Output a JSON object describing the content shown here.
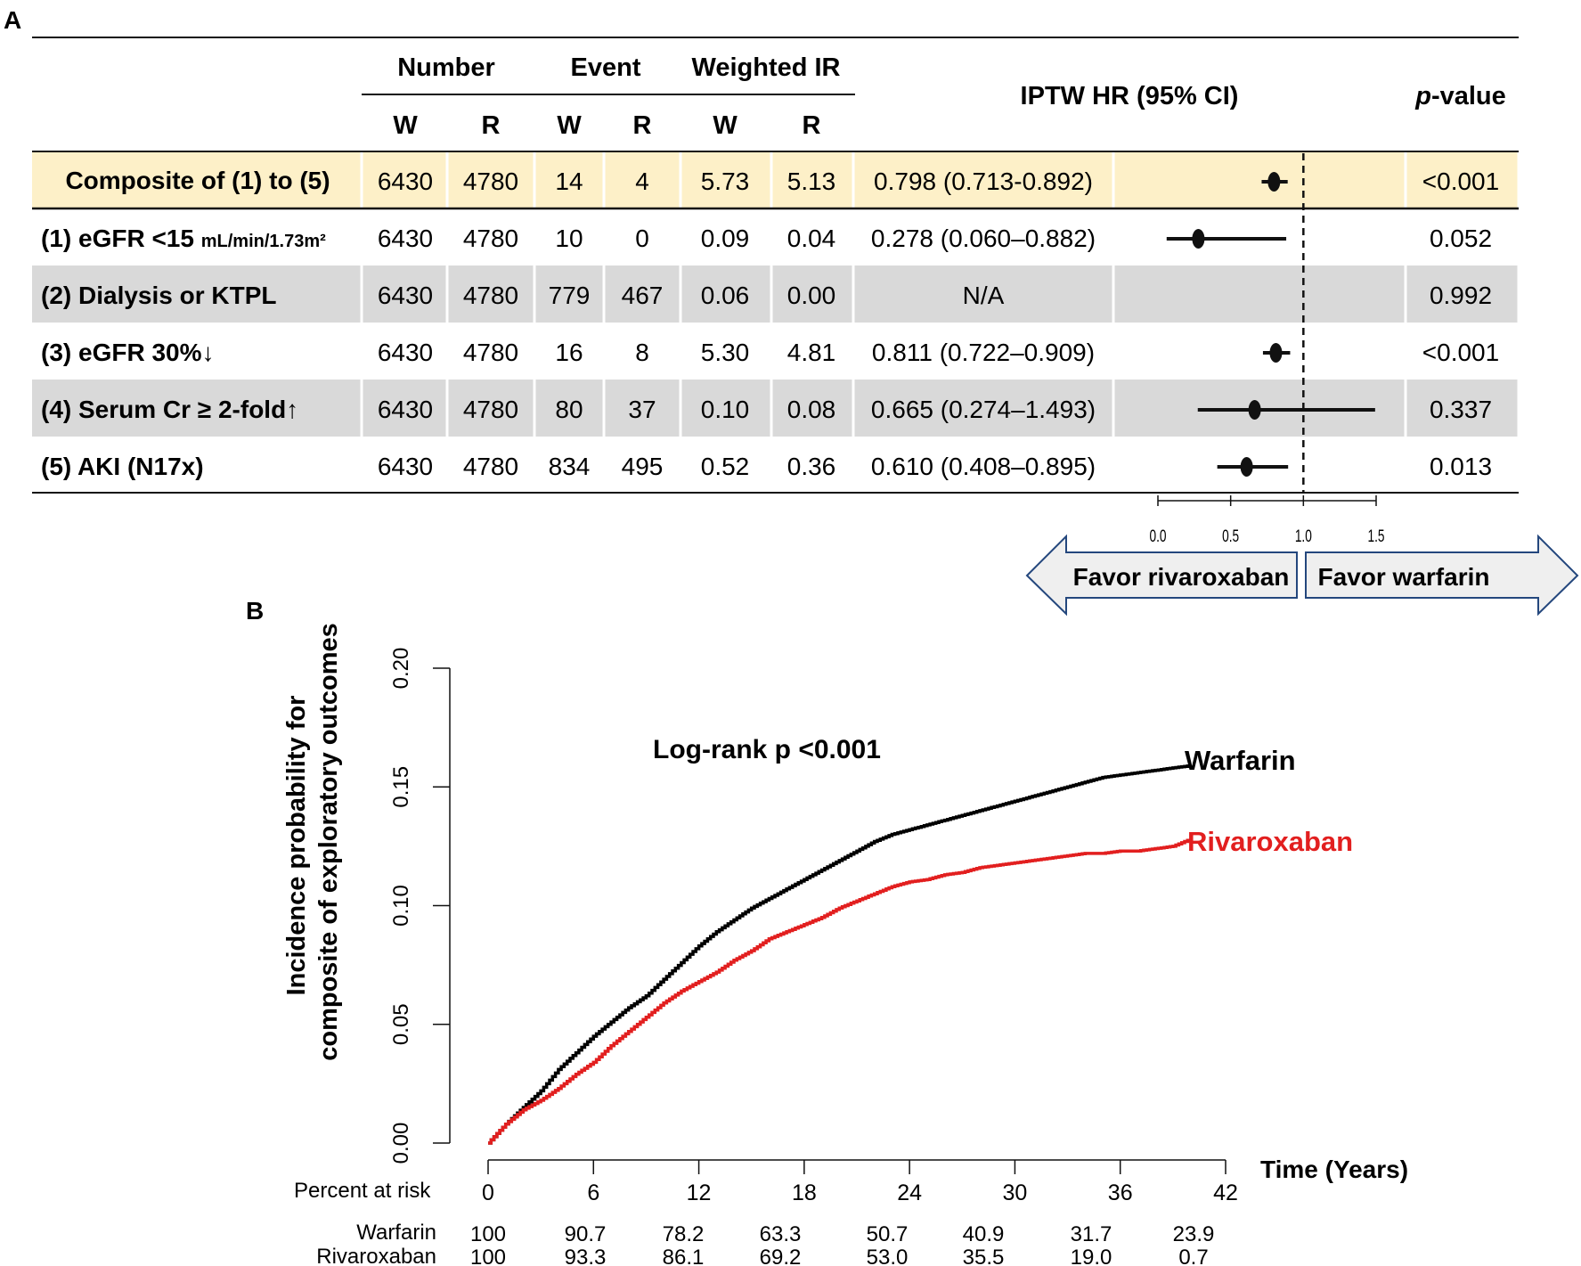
{
  "panelA": {
    "label": "A",
    "header": {
      "number": "Number",
      "event": "Event",
      "weighted_ir": "Weighted IR",
      "hr": "IPTW HR (95% CI)",
      "pvalue_italic": "p",
      "pvalue_rest": "-value",
      "sub": [
        "W",
        "R",
        "W",
        "R",
        "W",
        "R"
      ]
    },
    "rows": [
      {
        "label": "Composite of (1) to (5)",
        "label_suffix": "",
        "nW": "6430",
        "nR": "4780",
        "eW": "14",
        "eR": "4",
        "irW": "5.73",
        "irR": "5.13",
        "hr_text": "0.798 (0.713-0.892)",
        "p": "<0.001",
        "hr": 0.798,
        "lo": 0.713,
        "hi": 0.892,
        "highlight": true
      },
      {
        "label": "(1) eGFR <15 ",
        "label_suffix": "mL/min/1.73m²",
        "nW": "6430",
        "nR": "4780",
        "eW": "10",
        "eR": "0",
        "irW": "0.09",
        "irR": "0.04",
        "hr_text": "0.278 (0.060–0.882)",
        "p": "0.052",
        "hr": 0.278,
        "lo": 0.06,
        "hi": 0.882,
        "highlight": false
      },
      {
        "label": "(2) Dialysis or KTPL",
        "label_suffix": "",
        "nW": "6430",
        "nR": "4780",
        "eW": "779",
        "eR": "467",
        "irW": "0.06",
        "irR": "0.00",
        "hr_text": "N/A",
        "p": "0.992",
        "hr": null,
        "lo": null,
        "hi": null,
        "highlight": false
      },
      {
        "label": "(3) eGFR 30%↓",
        "label_suffix": "",
        "nW": "6430",
        "nR": "4780",
        "eW": "16",
        "eR": "8",
        "irW": "5.30",
        "irR": "4.81",
        "hr_text": "0.811 (0.722–0.909)",
        "p": "<0.001",
        "hr": 0.811,
        "lo": 0.722,
        "hi": 0.909,
        "highlight": false
      },
      {
        "label": "(4) Serum Cr ≥ 2-fold↑",
        "label_suffix": "",
        "nW": "6430",
        "nR": "4780",
        "eW": "80",
        "eR": "37",
        "irW": "0.10",
        "irR": "0.08",
        "hr_text": "0.665 (0.274–1.493)",
        "p": "0.337",
        "hr": 0.665,
        "lo": 0.274,
        "hi": 1.493,
        "highlight": false
      },
      {
        "label": "(5) AKI (N17x)",
        "label_suffix": "",
        "nW": "6430",
        "nR": "4780",
        "eW": "834",
        "eR": "495",
        "irW": "0.52",
        "irR": "0.36",
        "hr_text": "0.610 (0.408–0.895)",
        "p": "0.013",
        "hr": 0.61,
        "lo": 0.408,
        "hi": 0.895,
        "highlight": false
      }
    ],
    "forest_axis": {
      "ticks": [
        "0.0",
        "0.5",
        "1.0",
        "1.5"
      ],
      "tick_values": [
        0,
        0.5,
        1.0,
        1.5
      ],
      "reference": 1.0
    },
    "favor_left": "Favor rivaroxaban",
    "favor_right": "Favor warfarin"
  },
  "panelB": {
    "label": "B",
    "annotation": "Log-rank p <0.001",
    "risk_header": "Percent at risk",
    "risk_rows": [
      {
        "name": "Warfarin",
        "values": [
          "100",
          "90.7",
          "78.2",
          "63.3",
          "50.7",
          "40.9",
          "31.7",
          "23.9"
        ]
      },
      {
        "name": "Rivaroxaban",
        "values": [
          "100",
          "93.3",
          "86.1",
          "69.2",
          "53.0",
          "35.5",
          "19.0",
          "0.7"
        ]
      }
    ]
  },
  "colors": {
    "warfarin": "#000000",
    "rivaroxaban": "#e21f1f",
    "highlight": "#fdf0c8",
    "shade": "#d9d9d9",
    "arrow_fill": "#efefef",
    "arrow_stroke": "#24477d"
  },
  "chart_data": [
    {
      "type": "forest",
      "title": "IPTW HR (95% CI)",
      "categories": [
        "Composite of (1) to (5)",
        "(1) eGFR <15 mL/min/1.73m²",
        "(2) Dialysis or KTPL",
        "(3) eGFR 30%↓",
        "(4) Serum Cr ≥ 2-fold↑",
        "(5) AKI (N17x)"
      ],
      "estimates": [
        0.798,
        0.278,
        null,
        0.811,
        0.665,
        0.61
      ],
      "lower": [
        0.713,
        0.06,
        null,
        0.722,
        0.274,
        0.408
      ],
      "upper": [
        0.892,
        0.882,
        null,
        0.909,
        1.493,
        0.895
      ],
      "xlim": [
        0,
        1.5
      ],
      "reference_line": 1.0
    },
    {
      "type": "line",
      "title": "",
      "xlabel": "Time (Years)",
      "ylabel": "Incidence probability for composite of exploratory outcomes",
      "xlim": [
        0,
        42
      ],
      "ylim": [
        0,
        0.2
      ],
      "x_ticks": [
        "0",
        "6",
        "12",
        "18",
        "24",
        "30",
        "36",
        "42"
      ],
      "x_tick_values": [
        0,
        6,
        12,
        18,
        24,
        30,
        36,
        42
      ],
      "y_ticks": [
        "0.00",
        "0.05",
        "0.10",
        "0.15",
        "0.20"
      ],
      "y_tick_values": [
        0,
        0.05,
        0.1,
        0.15,
        0.2
      ],
      "series": [
        {
          "name": "Warfarin",
          "x": [
            0,
            1,
            2,
            3,
            4,
            5,
            6,
            7,
            8,
            9,
            10,
            11,
            12,
            13,
            14,
            15,
            16,
            17,
            18,
            19,
            20,
            21,
            22,
            23,
            24,
            25,
            26,
            27,
            28,
            29,
            30,
            31,
            32,
            33,
            34,
            35,
            36,
            37,
            38,
            39,
            40
          ],
          "values": [
            0,
            0.008,
            0.015,
            0.022,
            0.031,
            0.038,
            0.045,
            0.051,
            0.057,
            0.062,
            0.069,
            0.076,
            0.083,
            0.089,
            0.094,
            0.099,
            0.103,
            0.107,
            0.111,
            0.115,
            0.119,
            0.123,
            0.127,
            0.13,
            0.132,
            0.134,
            0.136,
            0.138,
            0.14,
            0.142,
            0.144,
            0.146,
            0.148,
            0.15,
            0.152,
            0.154,
            0.155,
            0.156,
            0.157,
            0.158,
            0.159
          ]
        },
        {
          "name": "Rivaroxaban",
          "x": [
            0,
            1,
            2,
            3,
            4,
            5,
            6,
            7,
            8,
            9,
            10,
            11,
            12,
            13,
            14,
            15,
            16,
            17,
            18,
            19,
            20,
            21,
            22,
            23,
            24,
            25,
            26,
            27,
            28,
            29,
            30,
            31,
            32,
            33,
            34,
            35,
            36,
            37,
            38,
            39,
            40
          ],
          "values": [
            0,
            0.008,
            0.014,
            0.018,
            0.023,
            0.029,
            0.034,
            0.041,
            0.047,
            0.053,
            0.059,
            0.064,
            0.068,
            0.072,
            0.077,
            0.081,
            0.086,
            0.089,
            0.092,
            0.095,
            0.099,
            0.102,
            0.105,
            0.108,
            0.11,
            0.111,
            0.113,
            0.114,
            0.116,
            0.117,
            0.118,
            0.119,
            0.12,
            0.121,
            0.122,
            0.122,
            0.123,
            0.123,
            0.124,
            0.125,
            0.128
          ]
        }
      ]
    }
  ]
}
